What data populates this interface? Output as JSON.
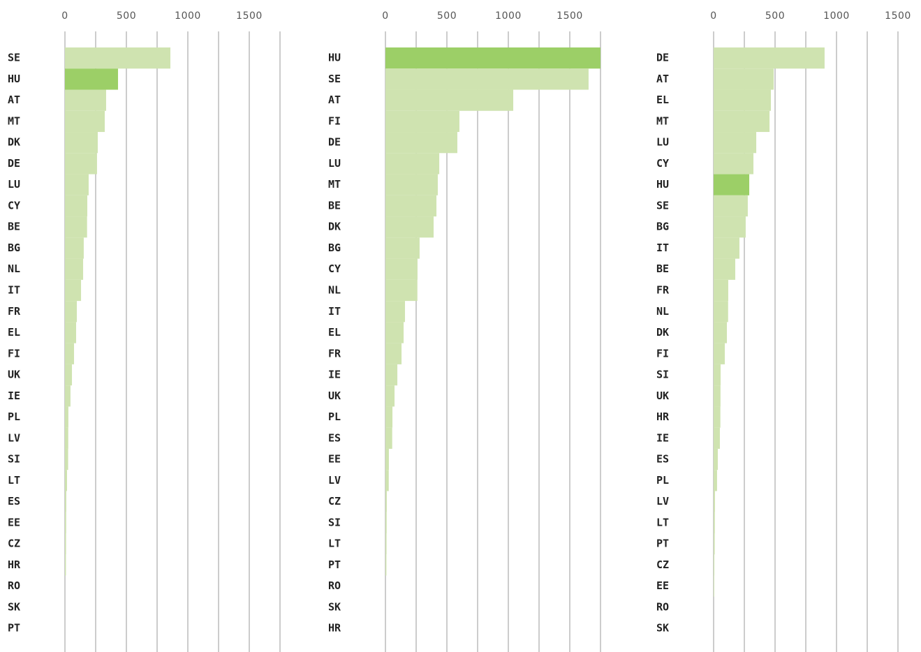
{
  "chart_data": [
    {
      "type": "barh",
      "categories": [
        "SE",
        "HU",
        "AT",
        "MT",
        "DK",
        "DE",
        "LU",
        "CY",
        "BE",
        "BG",
        "NL",
        "IT",
        "FR",
        "EL",
        "FI",
        "UK",
        "IE",
        "PL",
        "LV",
        "SI",
        "LT",
        "ES",
        "EE",
        "CZ",
        "HR",
        "RO",
        "SK",
        "PT"
      ],
      "values": [
        858,
        432,
        335,
        324,
        267,
        261,
        193,
        182,
        180,
        153,
        148,
        131,
        97,
        91,
        74,
        57,
        45,
        28,
        27,
        26,
        17,
        11,
        10,
        9,
        8,
        0,
        0,
        0
      ],
      "color": "#cfe3b0",
      "highlight_color": "#9ccf67",
      "highlight": 1,
      "xlim": [
        0,
        1750
      ],
      "xticks": [
        0,
        500,
        1000,
        1500
      ],
      "minor_xticks": [
        250,
        750,
        1250,
        1750
      ],
      "grid": true
    },
    {
      "type": "barh",
      "categories": [
        "HU",
        "SE",
        "AT",
        "FI",
        "DE",
        "LU",
        "MT",
        "BE",
        "DK",
        "BG",
        "CY",
        "NL",
        "IT",
        "EL",
        "FR",
        "IE",
        "UK",
        "PL",
        "ES",
        "EE",
        "LV",
        "CZ",
        "SI",
        "LT",
        "PT",
        "RO",
        "SK",
        "HR"
      ],
      "values": [
        1750,
        1653,
        1040,
        602,
        585,
        438,
        426,
        415,
        392,
        278,
        261,
        260,
        159,
        148,
        131,
        97,
        74,
        57,
        55,
        28,
        27,
        11,
        10,
        9,
        8,
        0,
        0,
        0
      ],
      "color": "#cfe3b0",
      "highlight_color": "#9ccf67",
      "highlight": 0,
      "xlim": [
        0,
        1750
      ],
      "xticks": [
        0,
        500,
        1000,
        1500
      ],
      "minor_xticks": [
        250,
        750,
        1250,
        1750
      ],
      "grid": true
    },
    {
      "type": "barh",
      "categories": [
        "DE",
        "AT",
        "EL",
        "MT",
        "LU",
        "CY",
        "HU",
        "SE",
        "BG",
        "IT",
        "BE",
        "FR",
        "NL",
        "DK",
        "FI",
        "SI",
        "UK",
        "HR",
        "IE",
        "ES",
        "PL",
        "LV",
        "LT",
        "PT",
        "CZ",
        "EE",
        "RO",
        "SK"
      ],
      "values": [
        903,
        489,
        466,
        455,
        347,
        324,
        290,
        278,
        261,
        210,
        176,
        119,
        118,
        108,
        91,
        57,
        56,
        55,
        51,
        34,
        28,
        11,
        10,
        9,
        6,
        5,
        0,
        0
      ],
      "color": "#cfe3b0",
      "highlight_color": "#9ccf67",
      "highlight": 6,
      "xlim": [
        0,
        1500
      ],
      "xticks": [
        0,
        500,
        1000,
        1500
      ],
      "minor_xticks": [
        250,
        750,
        1250
      ],
      "grid": true
    }
  ]
}
